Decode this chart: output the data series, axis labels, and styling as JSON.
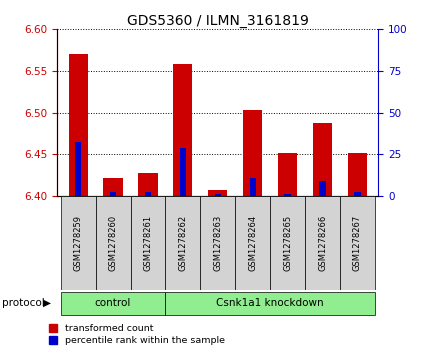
{
  "title": "GDS5360 / ILMN_3161819",
  "samples": [
    "GSM1278259",
    "GSM1278260",
    "GSM1278261",
    "GSM1278262",
    "GSM1278263",
    "GSM1278264",
    "GSM1278265",
    "GSM1278266",
    "GSM1278267"
  ],
  "red_values": [
    6.57,
    6.422,
    6.428,
    6.558,
    6.407,
    6.503,
    6.452,
    6.487,
    6.452
  ],
  "blue_values": [
    6.465,
    6.405,
    6.405,
    6.458,
    6.402,
    6.422,
    6.403,
    6.418,
    6.405
  ],
  "baseline": 6.4,
  "ylim_left": [
    6.4,
    6.6
  ],
  "ylim_right": [
    0,
    100
  ],
  "yticks_left": [
    6.4,
    6.45,
    6.5,
    6.55,
    6.6
  ],
  "yticks_right": [
    0,
    25,
    50,
    75,
    100
  ],
  "red_color": "#cc0000",
  "blue_color": "#0000cc",
  "sample_bg": "#d3d3d3",
  "group_bg": "#90ee90",
  "plot_bg": "#ffffff",
  "title_fontsize": 10,
  "bar_width": 0.55,
  "blue_bar_width": 0.18
}
